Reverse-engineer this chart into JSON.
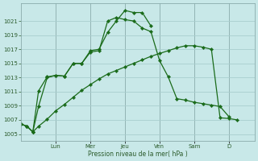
{
  "bg_color": "#c8e8e8",
  "grid_color": "#a8cece",
  "line_color": "#1a6b1a",
  "ylim": [
    1004.0,
    1023.5
  ],
  "yticks": [
    1005,
    1007,
    1009,
    1011,
    1013,
    1015,
    1017,
    1019,
    1021
  ],
  "xlabel": "Pression niveau de la mer( hPa )",
  "day_names": [
    "Lun",
    "Mer",
    "Jeu",
    "Ven",
    "Sam",
    "D"
  ],
  "day_tick_x": [
    2,
    4,
    6,
    8,
    10,
    12
  ],
  "vline_x": [
    2,
    4,
    6,
    8,
    10,
    12
  ],
  "xlim": [
    0,
    13.5
  ],
  "s1_x": [
    0,
    0.33,
    0.67,
    1.0,
    1.5,
    2.0,
    2.5,
    3.0,
    3.5,
    4.0,
    4.5,
    5.0,
    5.5,
    6.0,
    6.5,
    7.0,
    7.5
  ],
  "s1_y": [
    1006.4,
    1006.1,
    1005.3,
    1011.1,
    1013.1,
    1013.3,
    1013.2,
    1015.0,
    1015.0,
    1016.8,
    1017.0,
    1019.4,
    1021.0,
    1022.5,
    1022.2,
    1022.2,
    1020.3
  ],
  "s2_x": [
    0,
    0.33,
    0.67,
    1.0,
    1.5,
    2.0,
    2.5,
    3.0,
    3.5,
    4.0,
    4.5,
    5.0,
    5.5,
    6.0,
    6.5,
    7.0,
    7.5,
    8.0,
    8.5,
    9.0,
    9.5,
    10.0,
    10.5,
    11.0,
    11.5,
    12.0
  ],
  "s2_y": [
    1006.4,
    1006.1,
    1005.3,
    1008.9,
    1013.0,
    1013.3,
    1013.2,
    1015.0,
    1015.0,
    1016.6,
    1016.8,
    1021.0,
    1021.5,
    1021.2,
    1021.0,
    1020.0,
    1019.5,
    1015.4,
    1013.1,
    1010.0,
    1009.8,
    1009.5,
    1009.3,
    1009.1,
    1008.9,
    1007.5
  ],
  "s3_x": [
    0,
    0.33,
    0.67,
    1.0,
    1.5,
    2.0,
    2.5,
    3.0,
    3.5,
    4.0,
    4.5,
    5.0,
    5.5,
    6.0,
    6.5,
    7.0,
    7.5,
    8.0,
    8.5,
    9.0,
    9.5,
    10.0,
    10.5,
    11.0,
    11.5,
    12.0,
    12.5
  ],
  "s3_y": [
    1006.4,
    1006.1,
    1005.3,
    1006.1,
    1007.1,
    1008.3,
    1009.2,
    1010.2,
    1011.2,
    1012.0,
    1012.8,
    1013.5,
    1014.0,
    1014.5,
    1015.0,
    1015.5,
    1016.0,
    1016.4,
    1016.8,
    1017.2,
    1017.5,
    1017.5,
    1017.3,
    1017.0,
    1007.3,
    1007.2,
    1007.0
  ]
}
